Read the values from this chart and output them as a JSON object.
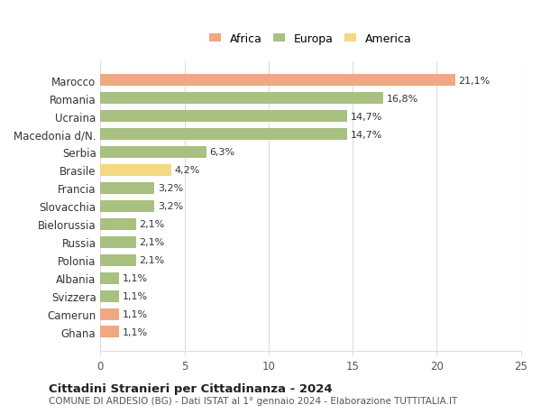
{
  "countries": [
    "Marocco",
    "Romania",
    "Ucraina",
    "Macedonia d/N.",
    "Serbia",
    "Brasile",
    "Francia",
    "Slovacchia",
    "Bielorussia",
    "Russia",
    "Polonia",
    "Albania",
    "Svizzera",
    "Camerun",
    "Ghana"
  ],
  "values": [
    21.1,
    16.8,
    14.7,
    14.7,
    6.3,
    4.2,
    3.2,
    3.2,
    2.1,
    2.1,
    2.1,
    1.1,
    1.1,
    1.1,
    1.1
  ],
  "labels": [
    "21,1%",
    "16,8%",
    "14,7%",
    "14,7%",
    "6,3%",
    "4,2%",
    "3,2%",
    "3,2%",
    "2,1%",
    "2,1%",
    "2,1%",
    "1,1%",
    "1,1%",
    "1,1%",
    "1,1%"
  ],
  "continents": [
    "Africa",
    "Europa",
    "Europa",
    "Europa",
    "Europa",
    "America",
    "Europa",
    "Europa",
    "Europa",
    "Europa",
    "Europa",
    "Europa",
    "Europa",
    "Africa",
    "Africa"
  ],
  "colors": {
    "Africa": "#F0A882",
    "Europa": "#A8C080",
    "America": "#F5D882"
  },
  "legend_order": [
    "Africa",
    "Europa",
    "America"
  ],
  "title1": "Cittadini Stranieri per Cittadinanza - 2024",
  "title2": "COMUNE DI ARDESIO (BG) - Dati ISTAT al 1° gennaio 2024 - Elaborazione TUTTITALIA.IT",
  "xlim": [
    0,
    25
  ],
  "xticks": [
    0,
    5,
    10,
    15,
    20,
    25
  ],
  "background_color": "#ffffff",
  "grid_color": "#dddddd"
}
